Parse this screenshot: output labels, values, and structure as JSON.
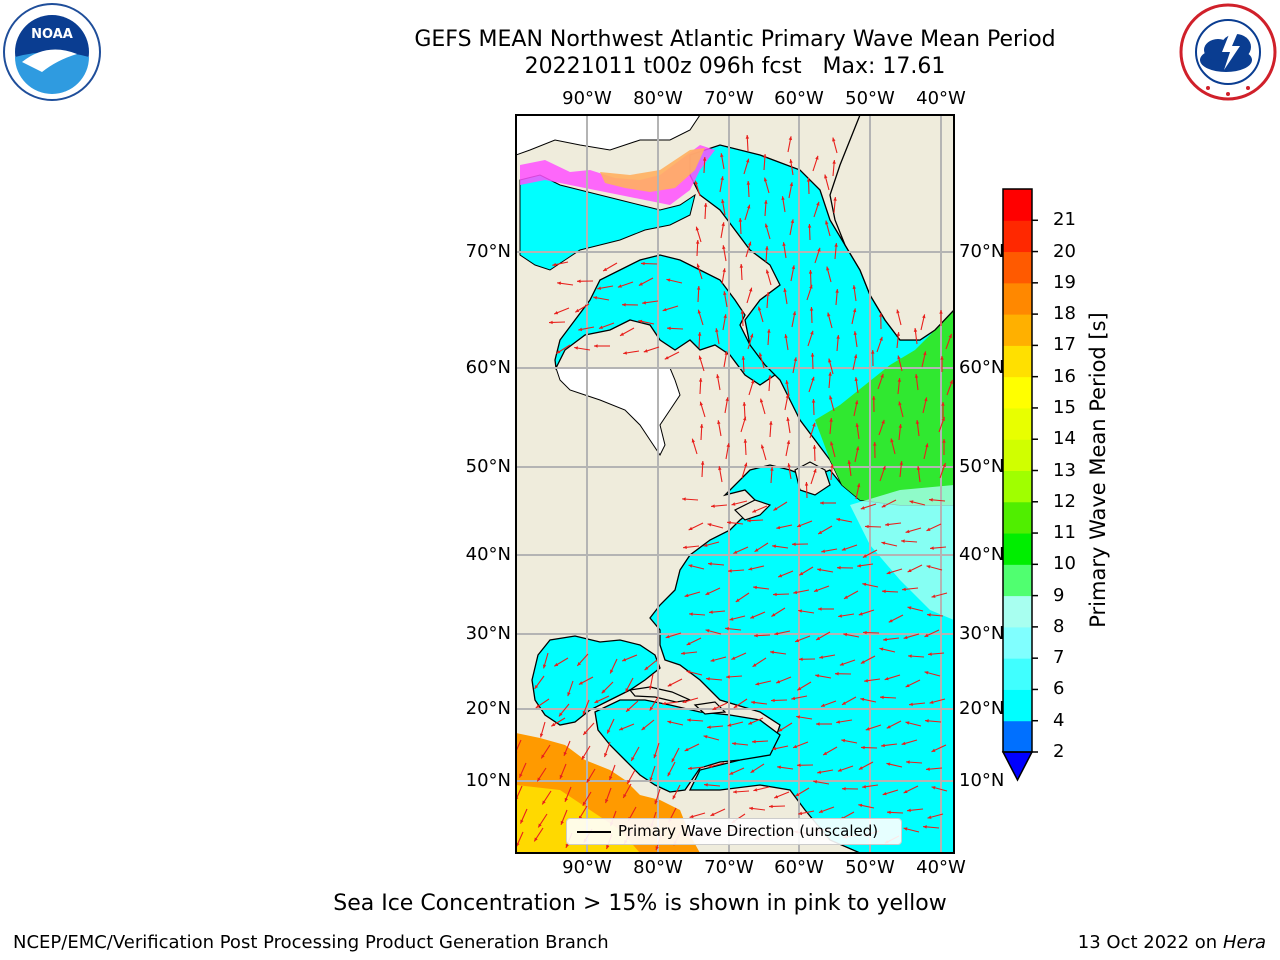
{
  "title": {
    "line1": "GEFS MEAN Northwest Atlantic Primary Wave Mean Period",
    "line2": "20221011 t00z 096h fcst   Max: 17.61"
  },
  "map": {
    "lon_ticks": [
      "90°W",
      "80°W",
      "70°W",
      "60°W",
      "50°W",
      "40°W"
    ],
    "lat_ticks": [
      "70°N",
      "60°N",
      "50°N",
      "40°N",
      "30°N",
      "20°N",
      "10°N"
    ],
    "land_color": "#efecdc",
    "ocean_color": "#00ffff",
    "vector_color": "#e8201c",
    "legend_label": "Primary Wave Direction (unscaled)"
  },
  "colorbar": {
    "label": "Primary Wave Mean Period [s]",
    "ticks": [
      "2",
      "4",
      "6",
      "7",
      "8",
      "9",
      "10",
      "11",
      "12",
      "13",
      "14",
      "15",
      "16",
      "17",
      "18",
      "19",
      "20",
      "21"
    ],
    "colors": [
      "#0070ff",
      "#00ffff",
      "#40ffff",
      "#80ffff",
      "#a8fff0",
      "#50ff70",
      "#00ee00",
      "#50ee00",
      "#a0ff00",
      "#d0ff00",
      "#e8ff00",
      "#ffff00",
      "#ffe000",
      "#ffb000",
      "#ff8800",
      "#ff5a00",
      "#ff2800",
      "#ff0000"
    ],
    "under_color": "#0000ff"
  },
  "note": "Sea Ice Concentration > 15% is shown in pink to yellow",
  "footer": {
    "left": "NCEP/EMC/Verification Post Processing Product Generation Branch",
    "date": "13 Oct 2022 on ",
    "machine": "Hera"
  }
}
